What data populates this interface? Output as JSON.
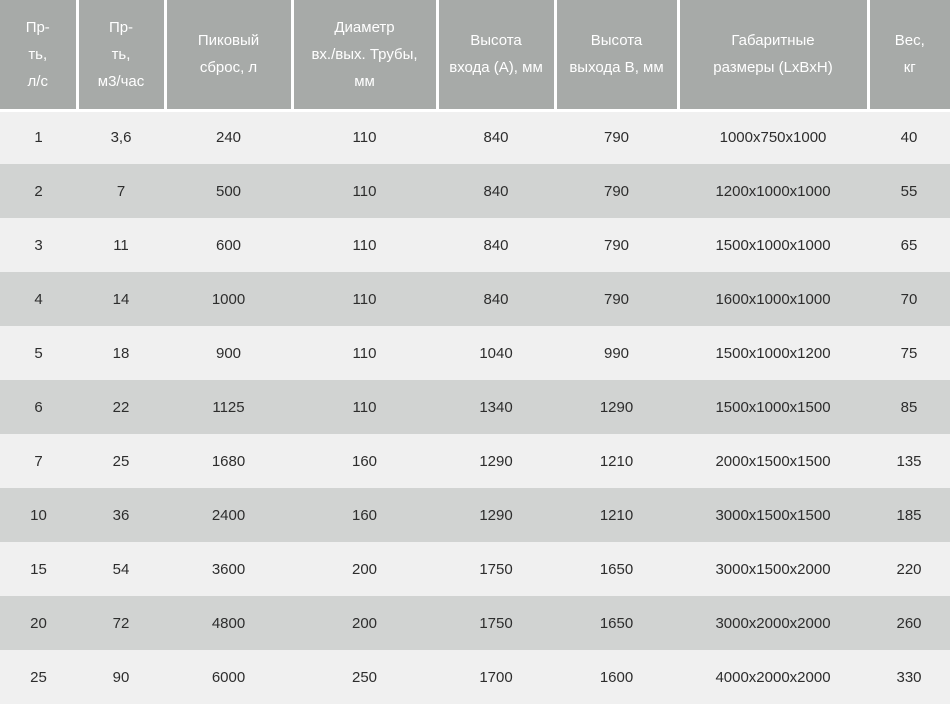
{
  "colors": {
    "header_bg": "#a7aaa8",
    "header_text": "#ffffff",
    "row_light": "#f0f0f0",
    "row_dark": "#d1d3d2",
    "body_text": "#2d2d2d"
  },
  "table": {
    "columns": [
      {
        "id": "flow-ls",
        "label": "Пр-\nть,\nл/с"
      },
      {
        "id": "flow-m3h",
        "label": "Пр-\nть,\nм3/час"
      },
      {
        "id": "peak-discharge",
        "label": "Пиковый\nсброс, л"
      },
      {
        "id": "pipe-diameter",
        "label": "Диаметр\nвх./вых. Трубы,\nмм"
      },
      {
        "id": "inlet-height",
        "label": "Высота\nвхода (А), мм"
      },
      {
        "id": "outlet-height",
        "label": "Высота\nвыхода В, мм"
      },
      {
        "id": "dimensions",
        "label": "Габаритные\nразмеры (LxBxH)"
      },
      {
        "id": "weight",
        "label": "Вес,\nкг"
      }
    ],
    "rows": [
      [
        "1",
        "3,6",
        "240",
        "110",
        "840",
        "790",
        "1000x750x1000",
        "40"
      ],
      [
        "2",
        "7",
        "500",
        "110",
        "840",
        "790",
        "1200x1000x1000",
        "55"
      ],
      [
        "3",
        "11",
        "600",
        "110",
        "840",
        "790",
        "1500x1000x1000",
        "65"
      ],
      [
        "4",
        "14",
        "1000",
        "110",
        "840",
        "790",
        "1600x1000x1000",
        "70"
      ],
      [
        "5",
        "18",
        "900",
        "110",
        "1040",
        "990",
        "1500x1000x1200",
        "75"
      ],
      [
        "6",
        "22",
        "1125",
        "110",
        "1340",
        "1290",
        "1500x1000x1500",
        "85"
      ],
      [
        "7",
        "25",
        "1680",
        "160",
        "1290",
        "1210",
        "2000x1500x1500",
        "135"
      ],
      [
        "10",
        "36",
        "2400",
        "160",
        "1290",
        "1210",
        "3000x1500x1500",
        "185"
      ],
      [
        "15",
        "54",
        "3600",
        "200",
        "1750",
        "1650",
        "3000x1500x2000",
        "220"
      ],
      [
        "20",
        "72",
        "4800",
        "200",
        "1750",
        "1650",
        "3000x2000x2000",
        "260"
      ],
      [
        "25",
        "90",
        "6000",
        "250",
        "1700",
        "1600",
        "4000x2000x2000",
        "330"
      ]
    ]
  }
}
